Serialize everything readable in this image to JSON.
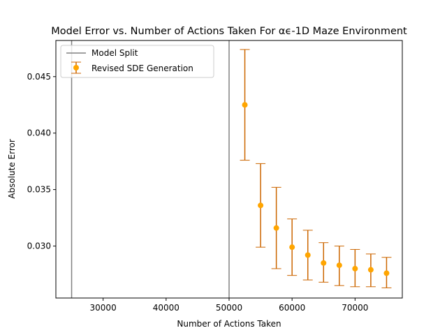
{
  "chart_data": {
    "type": "scatter",
    "title": "Model Error vs. Number of Actions Taken For αϵ-1D Maze Environment",
    "xlabel": "Number of Actions Taken",
    "ylabel": "Absolute Error",
    "xlim": [
      22500,
      77500
    ],
    "ylim": [
      0.0254,
      0.0482
    ],
    "xticks": [
      30000,
      40000,
      50000,
      60000,
      70000
    ],
    "xtick_labels": [
      "30000",
      "40000",
      "50000",
      "60000",
      "70000"
    ],
    "yticks": [
      0.03,
      0.035,
      0.04,
      0.045
    ],
    "ytick_labels": [
      "0.030",
      "0.035",
      "0.040",
      "0.045"
    ],
    "grid": false,
    "legend_position": "top-left",
    "vlines": {
      "name": "Model Split",
      "x": [
        25000,
        50000
      ],
      "color": "#808080"
    },
    "series": [
      {
        "name": "Revised SDE Generation",
        "color": "#ffa500",
        "errorbar_color": "#cc6600",
        "points": [
          {
            "x": 52500,
            "y": 0.0425,
            "lo": 0.0376,
            "hi": 0.0474
          },
          {
            "x": 55000,
            "y": 0.0336,
            "lo": 0.0299,
            "hi": 0.0373
          },
          {
            "x": 57500,
            "y": 0.0316,
            "lo": 0.028,
            "hi": 0.0352
          },
          {
            "x": 60000,
            "y": 0.0299,
            "lo": 0.0274,
            "hi": 0.0324
          },
          {
            "x": 62500,
            "y": 0.0292,
            "lo": 0.027,
            "hi": 0.0314
          },
          {
            "x": 65000,
            "y": 0.0285,
            "lo": 0.0268,
            "hi": 0.0303
          },
          {
            "x": 67500,
            "y": 0.0283,
            "lo": 0.0265,
            "hi": 0.03
          },
          {
            "x": 70000,
            "y": 0.028,
            "lo": 0.0264,
            "hi": 0.0297
          },
          {
            "x": 72500,
            "y": 0.0279,
            "lo": 0.0264,
            "hi": 0.0293
          },
          {
            "x": 75000,
            "y": 0.0276,
            "lo": 0.0263,
            "hi": 0.029
          }
        ]
      }
    ]
  }
}
